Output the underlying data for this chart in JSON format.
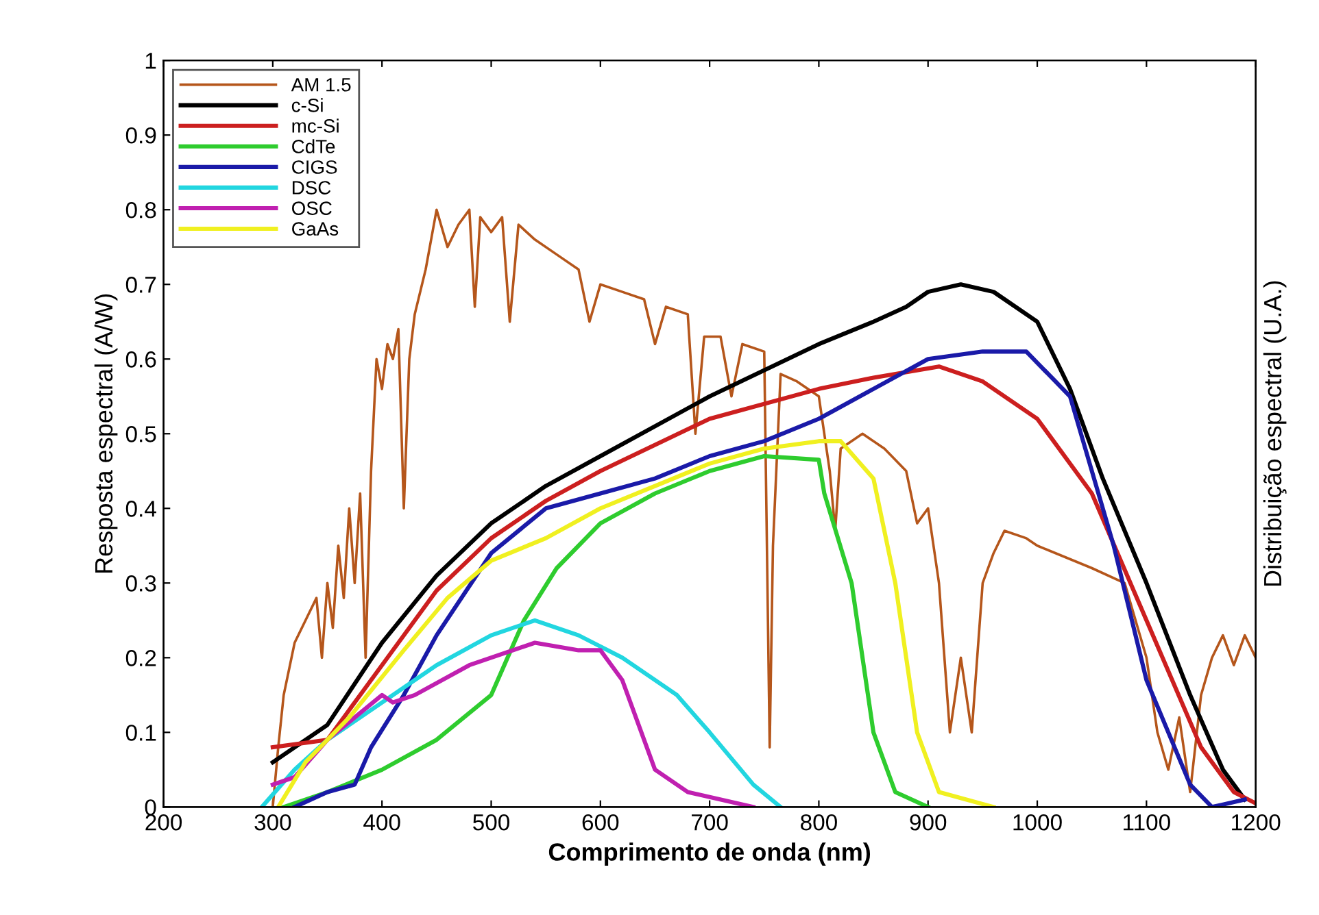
{
  "chart_data": {
    "type": "line",
    "xlabel": "Comprimento de onda (nm)",
    "ylabel": "Resposta espectral (A/W)",
    "y2label": "Distribuição espectral (U.A.)",
    "xlim": [
      200,
      1200
    ],
    "xticks": [
      200,
      300,
      400,
      500,
      600,
      700,
      800,
      900,
      1000,
      1100,
      1200
    ],
    "ylim": [
      0,
      1
    ],
    "yticks": [
      0,
      0.1,
      0.2,
      0.3,
      0.4,
      0.5,
      0.6,
      0.7,
      0.8,
      0.9,
      1
    ],
    "grid": false,
    "legend": "top left",
    "marker": "none",
    "line_style": "solid",
    "series": [
      {
        "name": "AM 1.5",
        "color": "#b5561b",
        "x": [
          300,
          305,
          310,
          320,
          330,
          340,
          345,
          350,
          355,
          360,
          365,
          370,
          375,
          380,
          385,
          390,
          395,
          400,
          405,
          410,
          415,
          420,
          425,
          430,
          440,
          450,
          460,
          470,
          480,
          485,
          490,
          500,
          510,
          517,
          525,
          540,
          560,
          580,
          590,
          600,
          620,
          640,
          650,
          660,
          680,
          687,
          695,
          710,
          720,
          730,
          750,
          755,
          758,
          765,
          780,
          800,
          810,
          815,
          820,
          840,
          860,
          880,
          890,
          900,
          910,
          920,
          930,
          940,
          950,
          960,
          970,
          990,
          1000,
          1050,
          1080,
          1100,
          1110,
          1120,
          1130,
          1140,
          1150,
          1160,
          1170,
          1180,
          1190,
          1200
        ],
        "values": [
          0,
          0.08,
          0.15,
          0.22,
          0.25,
          0.28,
          0.2,
          0.3,
          0.24,
          0.35,
          0.28,
          0.4,
          0.3,
          0.42,
          0.2,
          0.45,
          0.6,
          0.56,
          0.62,
          0.6,
          0.64,
          0.4,
          0.6,
          0.66,
          0.72,
          0.8,
          0.75,
          0.78,
          0.8,
          0.67,
          0.79,
          0.77,
          0.79,
          0.65,
          0.78,
          0.76,
          0.74,
          0.72,
          0.65,
          0.7,
          0.69,
          0.68,
          0.62,
          0.67,
          0.66,
          0.5,
          0.63,
          0.63,
          0.55,
          0.62,
          0.61,
          0.08,
          0.35,
          0.58,
          0.57,
          0.55,
          0.45,
          0.37,
          0.48,
          0.5,
          0.48,
          0.45,
          0.38,
          0.4,
          0.3,
          0.1,
          0.2,
          0.1,
          0.3,
          0.34,
          0.37,
          0.36,
          0.35,
          0.32,
          0.3,
          0.2,
          0.1,
          0.05,
          0.12,
          0.02,
          0.15,
          0.2,
          0.23,
          0.19,
          0.23,
          0.2
        ]
      },
      {
        "name": "c-Si",
        "color": "#000000",
        "x": [
          300,
          350,
          400,
          450,
          500,
          550,
          600,
          700,
          800,
          850,
          880,
          900,
          930,
          960,
          1000,
          1030,
          1060,
          1100,
          1140,
          1170,
          1190
        ],
        "values": [
          0.06,
          0.11,
          0.22,
          0.31,
          0.38,
          0.43,
          0.47,
          0.55,
          0.62,
          0.65,
          0.67,
          0.69,
          0.7,
          0.69,
          0.65,
          0.56,
          0.44,
          0.3,
          0.15,
          0.05,
          0.01
        ]
      },
      {
        "name": "mc-Si",
        "color": "#cc1f1f",
        "x": [
          300,
          350,
          400,
          450,
          500,
          550,
          600,
          700,
          800,
          850,
          910,
          950,
          1000,
          1050,
          1100,
          1150,
          1180,
          1200
        ],
        "values": [
          0.08,
          0.09,
          0.19,
          0.29,
          0.36,
          0.41,
          0.45,
          0.52,
          0.56,
          0.575,
          0.59,
          0.57,
          0.52,
          0.42,
          0.25,
          0.08,
          0.02,
          0.005
        ]
      },
      {
        "name": "CdTe",
        "color": "#2ecc2e",
        "x": [
          310,
          350,
          400,
          450,
          500,
          530,
          560,
          600,
          650,
          700,
          750,
          800,
          805,
          830,
          850,
          870,
          900
        ],
        "values": [
          0,
          0.02,
          0.05,
          0.09,
          0.15,
          0.25,
          0.32,
          0.38,
          0.42,
          0.45,
          0.47,
          0.465,
          0.42,
          0.3,
          0.1,
          0.02,
          0
        ]
      },
      {
        "name": "CIGS",
        "color": "#1a1aa8",
        "x": [
          320,
          350,
          375,
          390,
          420,
          450,
          500,
          550,
          600,
          650,
          700,
          750,
          800,
          850,
          900,
          950,
          990,
          1030,
          1070,
          1100,
          1140,
          1160,
          1190
        ],
        "values": [
          0,
          0.02,
          0.03,
          0.08,
          0.15,
          0.23,
          0.34,
          0.4,
          0.42,
          0.44,
          0.47,
          0.49,
          0.52,
          0.56,
          0.6,
          0.61,
          0.61,
          0.55,
          0.35,
          0.17,
          0.03,
          0,
          0.01
        ]
      },
      {
        "name": "DSC",
        "color": "#22d6e0",
        "x": [
          290,
          320,
          350,
          400,
          450,
          500,
          540,
          580,
          620,
          670,
          700,
          740,
          765
        ],
        "values": [
          0,
          0.05,
          0.09,
          0.14,
          0.19,
          0.23,
          0.25,
          0.23,
          0.2,
          0.15,
          0.1,
          0.03,
          0
        ]
      },
      {
        "name": "OSC",
        "color": "#c020b0",
        "x": [
          300,
          320,
          350,
          400,
          410,
          430,
          480,
          540,
          580,
          600,
          620,
          650,
          680,
          740
        ],
        "values": [
          0.03,
          0.04,
          0.09,
          0.15,
          0.14,
          0.15,
          0.19,
          0.22,
          0.21,
          0.21,
          0.17,
          0.05,
          0.02,
          0
        ]
      },
      {
        "name": "GaAs",
        "color": "#f0f020",
        "x": [
          305,
          330,
          370,
          420,
          460,
          500,
          550,
          600,
          650,
          700,
          750,
          800,
          820,
          850,
          870,
          890,
          910,
          960
        ],
        "values": [
          0,
          0.06,
          0.12,
          0.21,
          0.28,
          0.33,
          0.36,
          0.4,
          0.43,
          0.46,
          0.48,
          0.49,
          0.49,
          0.44,
          0.3,
          0.1,
          0.02,
          0
        ]
      }
    ]
  }
}
